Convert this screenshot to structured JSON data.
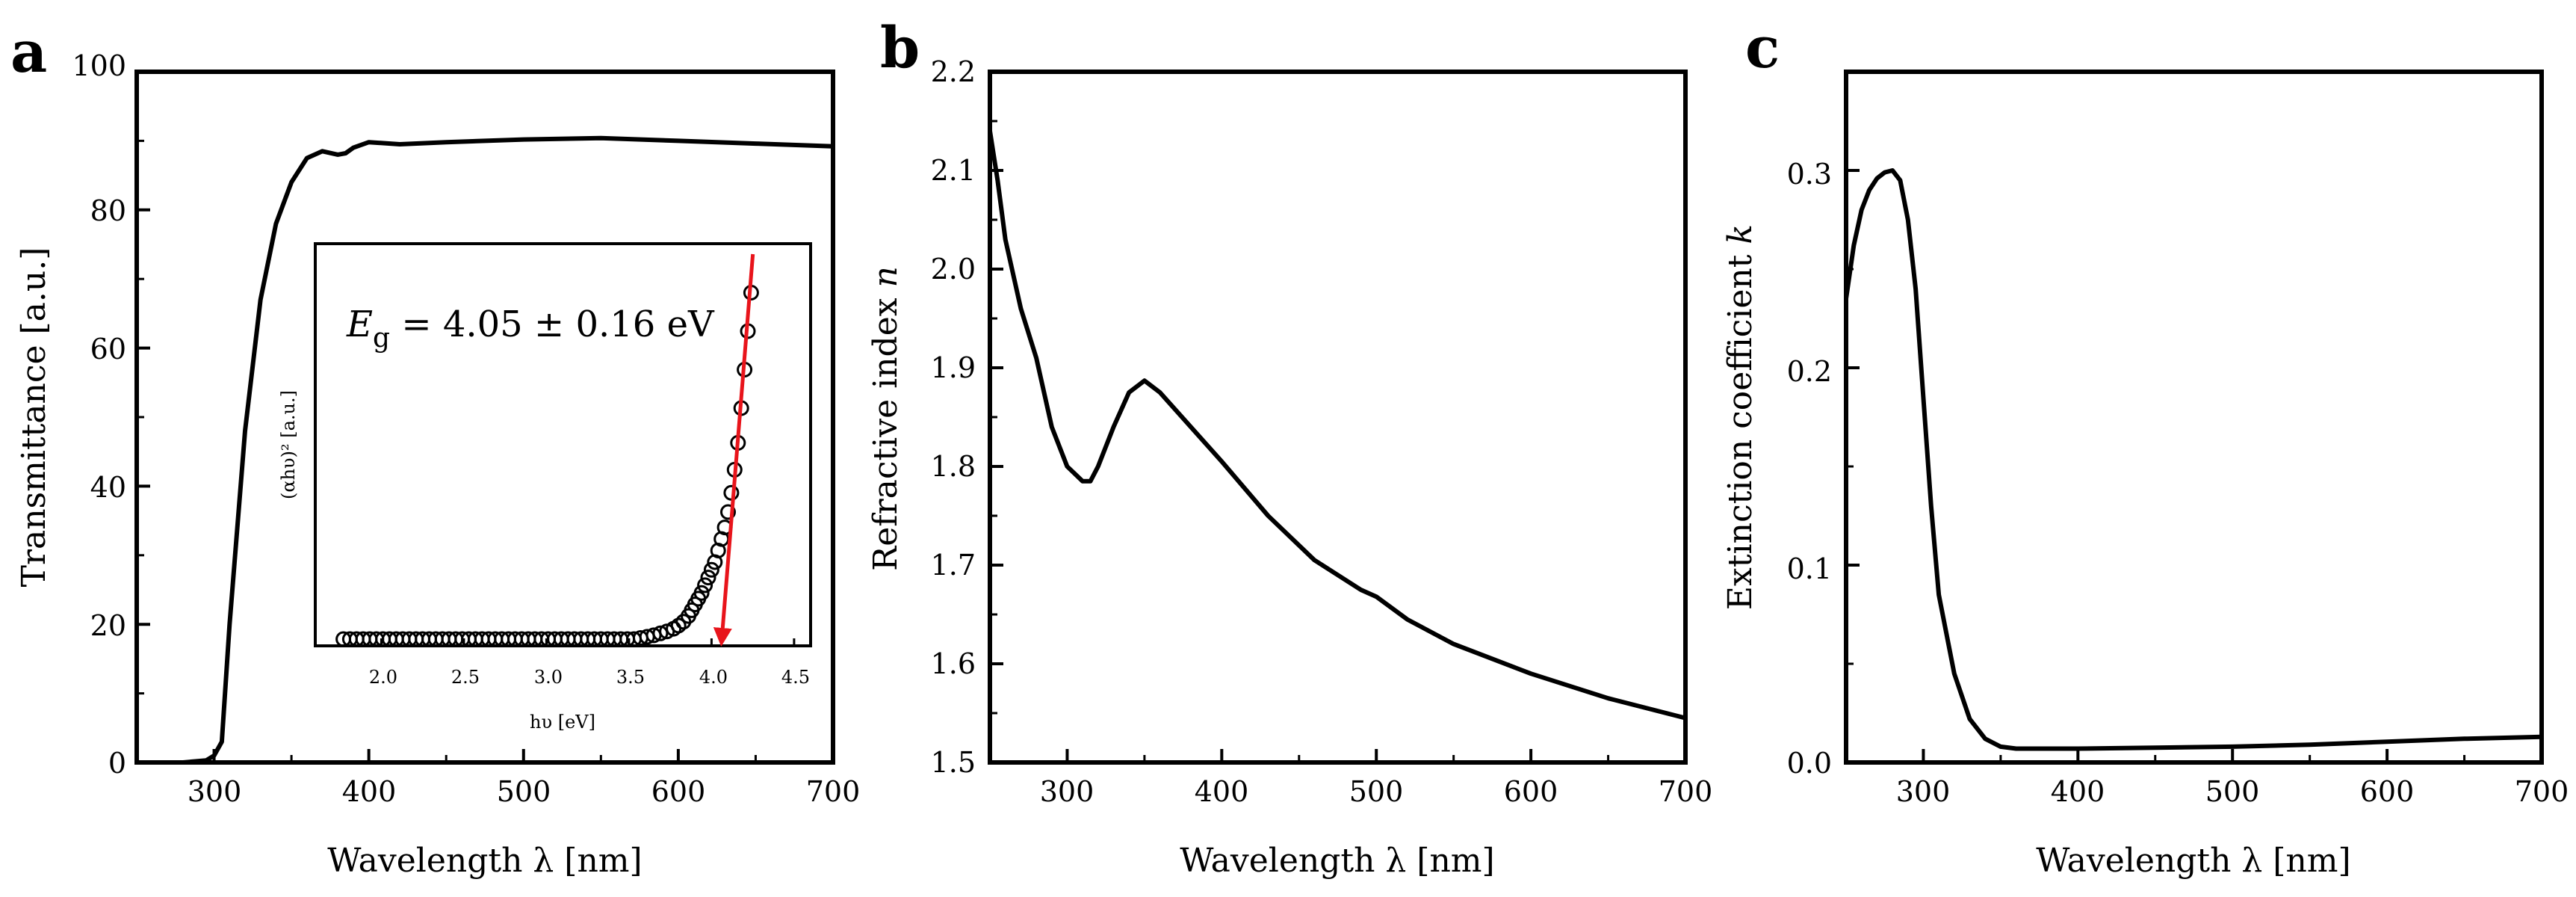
{
  "colors": {
    "axis": "#000000",
    "series": "#000000",
    "fit_line": "#e8141b"
  },
  "chart_data": [
    {
      "panel": "a",
      "type": "line",
      "xlabel": "Wavelength λ [nm]",
      "ylabel": "Transmittance [a.u.]",
      "xlim": [
        250,
        700
      ],
      "ylim": [
        0,
        100
      ],
      "xticks": [
        "300",
        "400",
        "500",
        "600",
        "700"
      ],
      "yticks": [
        "0",
        "20",
        "40",
        "60",
        "80",
        "100"
      ],
      "series": [
        {
          "name": "Transmittance",
          "x": [
            250,
            280,
            295,
            300,
            305,
            310,
            320,
            330,
            340,
            350,
            360,
            370,
            380,
            385,
            390,
            400,
            420,
            450,
            500,
            550,
            600,
            650,
            700
          ],
          "y": [
            0,
            0,
            0.3,
            1,
            3,
            20,
            48,
            67,
            78,
            84,
            87.5,
            88.5,
            88,
            88.2,
            89,
            89.8,
            89.5,
            89.8,
            90.2,
            90.4,
            90,
            89.6,
            89.2
          ]
        }
      ],
      "inset": {
        "type": "scatter",
        "xlabel": "hυ [eV]",
        "ylabel": "(αhυ)² [a.u.]",
        "xlim": [
          1.6,
          4.6
        ],
        "ylim": [
          0,
          1
        ],
        "xticks": [
          "2.0",
          "2.5",
          "3.0",
          "3.5",
          "4.0",
          "4.5"
        ],
        "annotation": {
          "symbol": "E",
          "subscript": "g",
          "text": " = 4.05 ± 0.16 eV"
        },
        "fit_line": {
          "x": [
            4.06,
            4.25
          ],
          "y": [
            -0.02,
            1.0
          ]
        },
        "points": {
          "x": [
            1.77,
            1.81,
            1.85,
            1.89,
            1.93,
            1.97,
            2.01,
            2.05,
            2.09,
            2.13,
            2.17,
            2.21,
            2.25,
            2.29,
            2.33,
            2.37,
            2.41,
            2.45,
            2.49,
            2.53,
            2.57,
            2.61,
            2.65,
            2.69,
            2.73,
            2.77,
            2.81,
            2.85,
            2.89,
            2.93,
            2.97,
            3.01,
            3.05,
            3.09,
            3.13,
            3.17,
            3.21,
            3.25,
            3.29,
            3.33,
            3.37,
            3.41,
            3.45,
            3.49,
            3.53,
            3.57,
            3.61,
            3.65,
            3.69,
            3.73,
            3.77,
            3.8,
            3.83,
            3.86,
            3.88,
            3.9,
            3.92,
            3.94,
            3.96,
            3.98,
            4.0,
            4.02,
            4.04,
            4.06,
            4.08,
            4.1,
            4.12,
            4.14,
            4.16,
            4.18,
            4.2,
            4.22,
            4.24
          ],
          "y": [
            0,
            0,
            0,
            0,
            0,
            0,
            0,
            0,
            0,
            0,
            0,
            0,
            0,
            0,
            0,
            0,
            0,
            0,
            0,
            0,
            0,
            0,
            0,
            0,
            0,
            0,
            0,
            0,
            0,
            0,
            0,
            0,
            0,
            0,
            0,
            0,
            0,
            0,
            0,
            0,
            0,
            0,
            0,
            0,
            0,
            0.003,
            0.006,
            0.01,
            0.015,
            0.02,
            0.027,
            0.035,
            0.045,
            0.06,
            0.075,
            0.09,
            0.105,
            0.12,
            0.14,
            0.16,
            0.18,
            0.2,
            0.23,
            0.26,
            0.29,
            0.33,
            0.38,
            0.44,
            0.51,
            0.6,
            0.7,
            0.8,
            0.9
          ]
        }
      }
    },
    {
      "panel": "b",
      "type": "line",
      "xlabel": "Wavelength λ [nm]",
      "ylabel_text": "Refractive index ",
      "ylabel_symbol": "n",
      "xlim": [
        250,
        700
      ],
      "ylim": [
        1.5,
        2.2
      ],
      "xticks": [
        "300",
        "400",
        "500",
        "600",
        "700"
      ],
      "yticks": [
        "1.5",
        "1.6",
        "1.7",
        "1.8",
        "1.9",
        "2.0",
        "2.1",
        "2.2"
      ],
      "series": [
        {
          "name": "n",
          "x": [
            250,
            255,
            260,
            270,
            280,
            290,
            300,
            310,
            315,
            320,
            330,
            340,
            350,
            360,
            380,
            400,
            430,
            460,
            490,
            500,
            520,
            550,
            600,
            650,
            700
          ],
          "y": [
            2.14,
            2.09,
            2.03,
            1.96,
            1.91,
            1.84,
            1.8,
            1.785,
            1.785,
            1.8,
            1.84,
            1.875,
            1.887,
            1.875,
            1.84,
            1.805,
            1.75,
            1.705,
            1.675,
            1.668,
            1.645,
            1.62,
            1.59,
            1.565,
            1.545
          ]
        }
      ]
    },
    {
      "panel": "c",
      "type": "line",
      "xlabel": "Wavelength λ [nm]",
      "ylabel_text": "Extinction coefficient ",
      "ylabel_symbol": "k",
      "xlim": [
        250,
        700
      ],
      "ylim": [
        0,
        0.35
      ],
      "xticks": [
        "300",
        "400",
        "500",
        "600",
        "700"
      ],
      "yticks": [
        "0.0",
        "0.1",
        "0.2",
        "0.3"
      ],
      "series": [
        {
          "name": "k",
          "x": [
            250,
            255,
            260,
            265,
            270,
            275,
            280,
            285,
            290,
            295,
            300,
            305,
            310,
            320,
            330,
            340,
            350,
            360,
            370,
            400,
            450,
            500,
            550,
            600,
            650,
            700
          ],
          "y": [
            0.235,
            0.262,
            0.28,
            0.29,
            0.296,
            0.299,
            0.3,
            0.295,
            0.275,
            0.24,
            0.185,
            0.13,
            0.085,
            0.045,
            0.022,
            0.012,
            0.008,
            0.007,
            0.007,
            0.007,
            0.0075,
            0.008,
            0.009,
            0.0105,
            0.012,
            0.013
          ]
        }
      ]
    }
  ]
}
